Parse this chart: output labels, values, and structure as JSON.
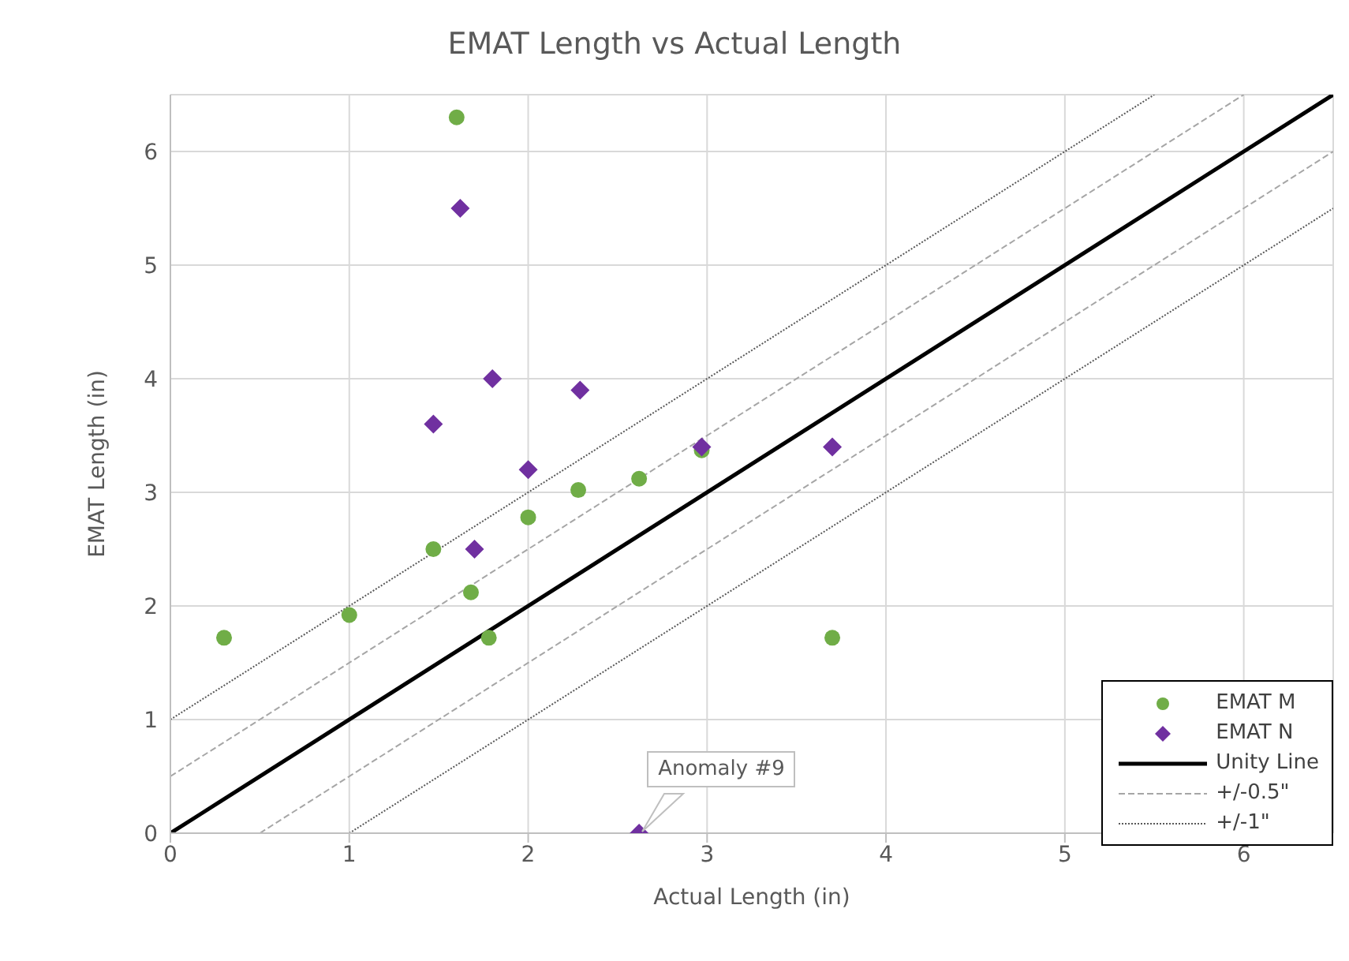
{
  "chart_data": {
    "type": "scatter",
    "title": "EMAT Length vs Actual Length",
    "xlabel": "Actual Length (in)",
    "ylabel": "EMAT Length (in)",
    "xlim": [
      0,
      6.5
    ],
    "ylim": [
      0,
      6.5
    ],
    "xticks": [
      0,
      1,
      2,
      3,
      4,
      5,
      6
    ],
    "yticks": [
      0,
      1,
      2,
      3,
      4,
      5,
      6
    ],
    "grid": true,
    "legend": "bottom right",
    "annotations": [
      {
        "text": "Anomaly #9",
        "x": 2.62,
        "y": 0
      }
    ],
    "series": [
      {
        "name": "EMAT M",
        "color": "#70ad47",
        "marker": "circle",
        "x": [
          1.6,
          0.3,
          1.0,
          1.47,
          1.68,
          1.78,
          2.0,
          2.28,
          2.62,
          2.97,
          3.7
        ],
        "values": [
          6.3,
          1.72,
          1.92,
          2.5,
          2.12,
          1.72,
          2.78,
          3.02,
          3.12,
          3.37,
          1.72
        ]
      },
      {
        "name": "EMAT N",
        "color": "#7030a0",
        "marker": "diamond",
        "x": [
          1.62,
          1.47,
          1.8,
          2.29,
          2.0,
          1.7,
          2.97,
          3.7,
          2.62
        ],
        "values": [
          5.5,
          3.6,
          4.0,
          3.9,
          3.2,
          2.5,
          3.4,
          3.4,
          0
        ]
      },
      {
        "name": "Unity Line",
        "type": "line",
        "color": "#000000",
        "line_style": "solid",
        "marker": "none",
        "x": [
          0,
          6.5
        ],
        "values": [
          0,
          6.5
        ]
      },
      {
        "name": "+/-0.5\"",
        "type": "line",
        "color": "#a6a6a6",
        "line_style": "dashed",
        "marker": "none",
        "x": [
          0,
          6
        ],
        "values": [
          0.5,
          6.5
        ]
      },
      {
        "type": "line",
        "color": "#a6a6a6",
        "line_style": "dashed",
        "marker": "none",
        "x": [
          0.5,
          6.5
        ],
        "values": [
          0,
          6
        ]
      },
      {
        "name": "+/-1\"",
        "type": "line",
        "color": "#595959",
        "line_style": "dotted",
        "marker": "none",
        "x": [
          0,
          5.5
        ],
        "values": [
          1,
          6.5
        ]
      },
      {
        "type": "line",
        "color": "#595959",
        "line_style": "dotted",
        "marker": "none",
        "x": [
          1,
          6.5
        ],
        "values": [
          0,
          5.5
        ]
      }
    ]
  }
}
